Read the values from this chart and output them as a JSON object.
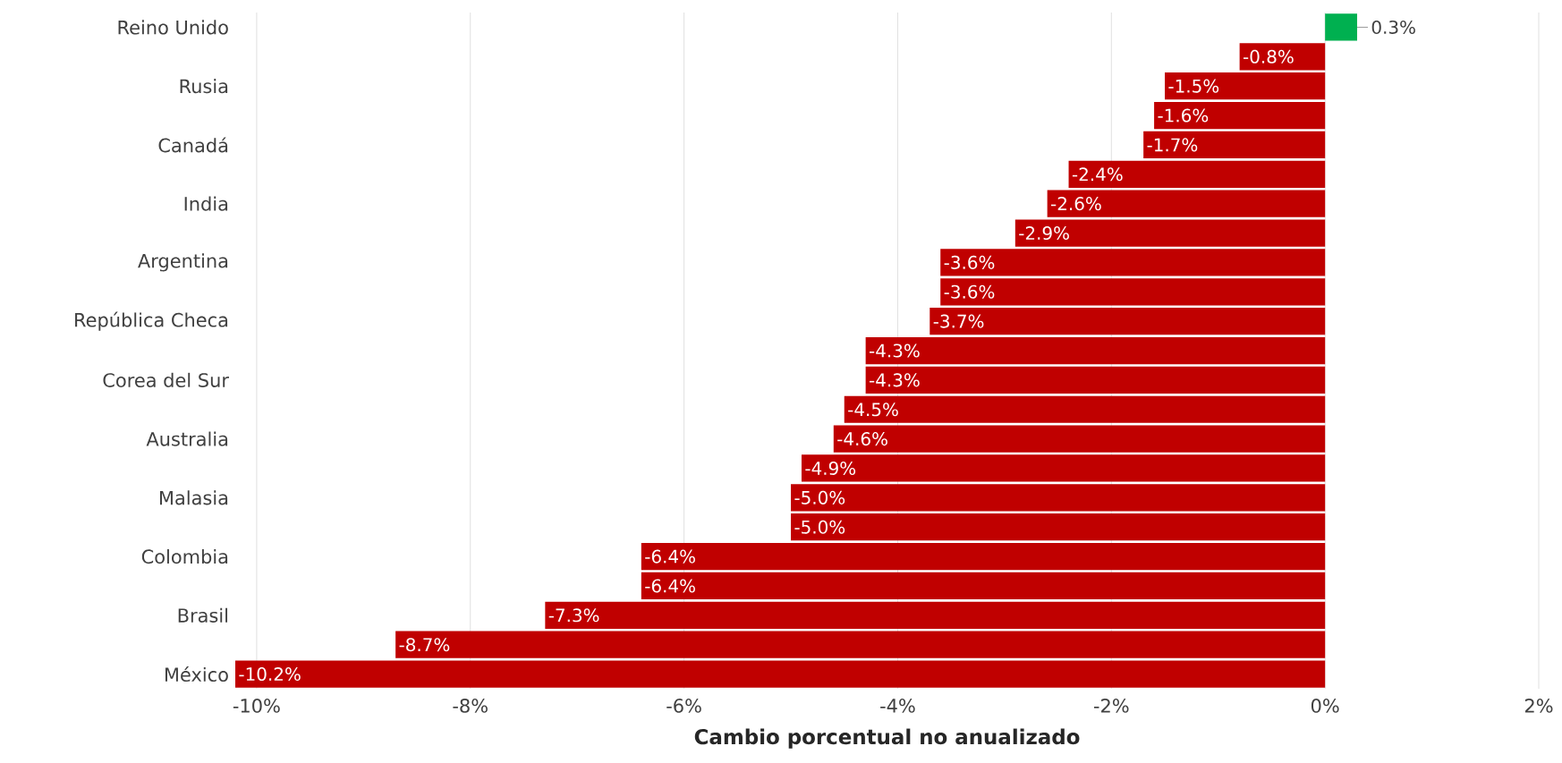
{
  "chart_data": {
    "type": "bar",
    "orientation": "horizontal",
    "xlabel": "Cambio porcentual no anualizado",
    "categories": [
      "Reino Unido",
      null,
      "Rusia",
      null,
      "Canadá",
      null,
      "India",
      null,
      "Argentina",
      null,
      "República Checa",
      null,
      "Corea del Sur",
      null,
      "Australia",
      null,
      "Malasia",
      null,
      "Colombia",
      null,
      "Brasil",
      null,
      "México"
    ],
    "values": [
      0.3,
      -0.8,
      -1.5,
      -1.6,
      -1.7,
      -2.4,
      -2.6,
      -2.9,
      -3.6,
      -3.6,
      -3.7,
      -4.3,
      -4.3,
      -4.5,
      -4.6,
      -4.9,
      -5.0,
      -5.0,
      -6.4,
      -6.4,
      -7.3,
      -8.7,
      -10.2
    ],
    "value_labels": [
      "0.3%",
      "-0.8%",
      "-1.5%",
      "-1.6%",
      "-1.7%",
      "-2.4%",
      "-2.6%",
      "-2.9%",
      "-3.6%",
      "-3.6%",
      "-3.7%",
      "-4.3%",
      "-4.3%",
      "-4.5%",
      "-4.6%",
      "-4.9%",
      "-5.0%",
      "-5.0%",
      "-6.4%",
      "-6.4%",
      "-7.3%",
      "-8.7%",
      "-10.2%"
    ],
    "colors": [
      "#00b050",
      "#c00000",
      "#c00000",
      "#c00000",
      "#c00000",
      "#c00000",
      "#c00000",
      "#c00000",
      "#c00000",
      "#c00000",
      "#c00000",
      "#c00000",
      "#c00000",
      "#c00000",
      "#c00000",
      "#c00000",
      "#c00000",
      "#c00000",
      "#c00000",
      "#c00000",
      "#c00000",
      "#c00000",
      "#c00000"
    ],
    "xlim": [
      -10.2,
      2
    ],
    "xticks": [
      {
        "value": -10,
        "label": "-10%"
      },
      {
        "value": -8,
        "label": "-8%"
      },
      {
        "value": -6,
        "label": "-6%"
      },
      {
        "value": -4,
        "label": "-4%"
      },
      {
        "value": -2,
        "label": "-2%"
      },
      {
        "value": 0,
        "label": "0%"
      },
      {
        "value": 2,
        "label": "2%"
      }
    ],
    "grid": "x"
  }
}
